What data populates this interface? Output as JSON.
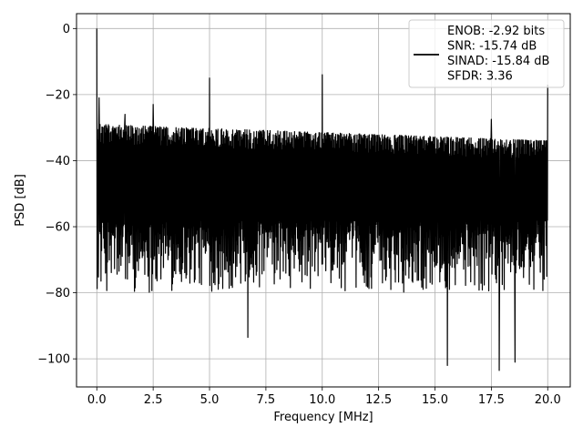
{
  "chart_data": {
    "type": "line",
    "xlabel": "Frequency [MHz]",
    "ylabel": "PSD [dB]",
    "xlim": [
      -0.9,
      21.0
    ],
    "ylim": [
      -108.5,
      4.5
    ],
    "xticks": [
      0.0,
      2.5,
      5.0,
      7.5,
      10.0,
      12.5,
      15.0,
      17.5,
      20.0
    ],
    "xtick_labels": [
      "0.0",
      "2.5",
      "5.0",
      "7.5",
      "10.0",
      "12.5",
      "15.0",
      "17.5",
      "20.0"
    ],
    "yticks": [
      0,
      -20,
      -40,
      -60,
      -80,
      -100
    ],
    "ytick_labels": [
      "0",
      "−20",
      "−40",
      "−60",
      "−80",
      "−100"
    ],
    "grid": true,
    "legend_position": "top-right",
    "legend_lines": [
      "ENOB: -2.92 bits",
      "SNR: -15.74 dB",
      "SINAD: -15.84 dB",
      "SFDR: 3.36"
    ],
    "series": [
      {
        "color": "#000000",
        "noise_floor_db_start": -29,
        "noise_floor_db_end": -34,
        "noise_min_db": -80,
        "spikes": [
          {
            "x": 0.0,
            "y": 0
          },
          {
            "x": 0.1,
            "y": -21
          },
          {
            "x": 1.25,
            "y": -26
          },
          {
            "x": 2.5,
            "y": -23
          },
          {
            "x": 5.0,
            "y": -15
          },
          {
            "x": 10.0,
            "y": -14
          },
          {
            "x": 17.5,
            "y": -27.5
          },
          {
            "x": 20.0,
            "y": -17
          }
        ],
        "dips": [
          {
            "x": 6.7,
            "y": -93.5
          },
          {
            "x": 15.55,
            "y": -102
          },
          {
            "x": 17.85,
            "y": -103.5
          },
          {
            "x": 18.55,
            "y": -101
          }
        ]
      }
    ]
  }
}
